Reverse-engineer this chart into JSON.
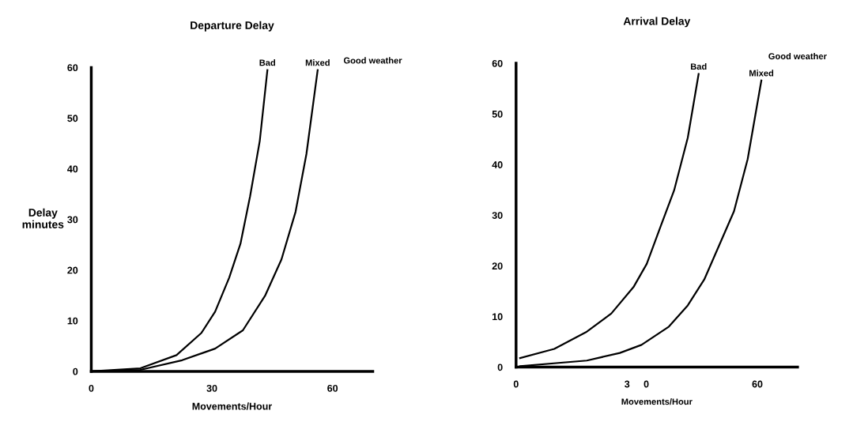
{
  "chart_data": [
    {
      "type": "line",
      "title": "Departure Delay",
      "xlabel": "Movements/Hour",
      "ylabel": "Delay\nminutes",
      "xlim": [
        0,
        70
      ],
      "ylim": [
        0,
        60
      ],
      "xticks": [
        0,
        30,
        60
      ],
      "yticks": [
        0,
        10,
        20,
        30,
        40,
        50,
        60
      ],
      "grid": false,
      "legend": false,
      "annotations": [
        "Good weather"
      ],
      "series": [
        {
          "name": "Bad",
          "color": "#000000",
          "x": [
            0,
            12.2,
            21.2,
            27.4,
            30.8,
            34.3,
            37.1,
            39.5,
            41.9,
            43.8
          ],
          "values": [
            0,
            0.6,
            3.2,
            7.6,
            11.8,
            18.5,
            25.2,
            34.6,
            45.5,
            59.5
          ]
        },
        {
          "name": "Mixed",
          "color": "#000000",
          "x": [
            0,
            12.2,
            22.6,
            30.8,
            37.7,
            43.2,
            47.3,
            50.8,
            53.5,
            56.3
          ],
          "values": [
            0,
            0.3,
            2.2,
            4.5,
            8.1,
            14.9,
            22.1,
            31.5,
            42.9,
            59.5
          ]
        }
      ]
    },
    {
      "type": "line",
      "title": "Arrival Delay",
      "xlabel": "Movements/Hour",
      "xlim": [
        0,
        70
      ],
      "ylim": [
        0,
        60
      ],
      "xticks": [
        0,
        {
          "value": 30,
          "label": "3     0"
        },
        60
      ],
      "yticks": [
        0,
        10,
        20,
        30,
        40,
        50,
        60
      ],
      "grid": false,
      "legend": false,
      "annotations": [
        "Good weather"
      ],
      "series": [
        {
          "name": "Bad",
          "color": "#000000",
          "x": [
            1.0,
            9.5,
            17.6,
            23.7,
            29.2,
            32.5,
            35.9,
            39.3,
            42.7,
            45.4
          ],
          "values": [
            1.8,
            3.6,
            7.0,
            10.6,
            15.8,
            20.4,
            27.7,
            34.9,
            45.3,
            57.9
          ]
        },
        {
          "name": "Mixed",
          "color": "#000000",
          "x": [
            1.0,
            17.6,
            25.8,
            31.2,
            38.0,
            42.7,
            46.8,
            50.8,
            54.2,
            57.6,
            61.0
          ],
          "values": [
            0.2,
            1.3,
            2.8,
            4.4,
            8.0,
            12.2,
            17.3,
            24.6,
            30.8,
            41.1,
            56.6
          ]
        }
      ]
    }
  ]
}
